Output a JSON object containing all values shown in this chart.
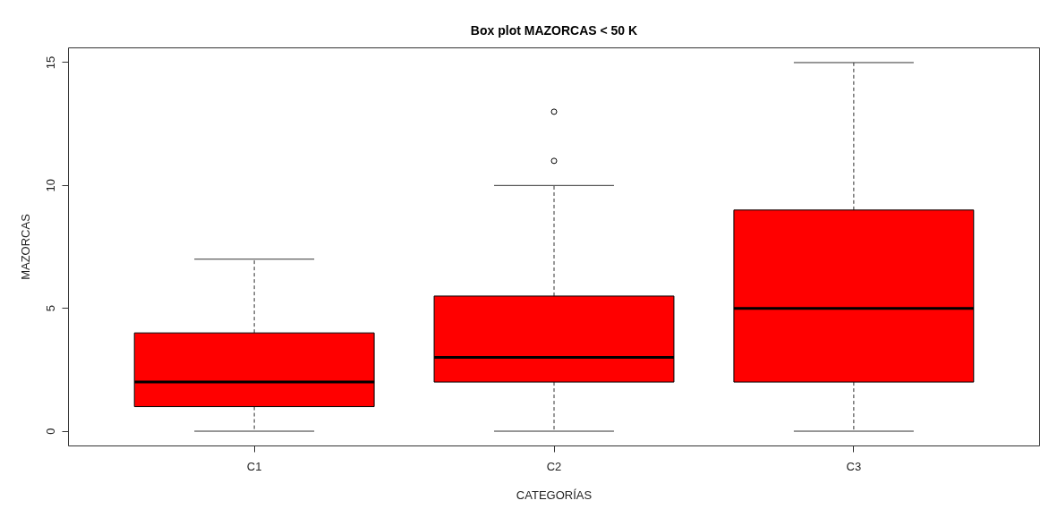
{
  "chart_data": {
    "type": "box",
    "title": "Box plot MAZORCAS < 50 K",
    "xlabel": "CATEGORÍAS",
    "ylabel": "MAZORCAS",
    "categories": [
      "C1",
      "C2",
      "C3"
    ],
    "boxes": [
      {
        "low": 0,
        "q1": 1,
        "median": 2,
        "q3": 4,
        "high": 7
      },
      {
        "low": 0,
        "q1": 2,
        "median": 3,
        "q3": 5.5,
        "high": 10,
        "outliers": [
          11,
          13
        ]
      },
      {
        "low": 0,
        "q1": 2,
        "median": 5,
        "q3": 9,
        "high": 15
      }
    ],
    "color": "#ff0000",
    "ylim": [
      -0.6,
      15.6
    ],
    "yticks": [
      0,
      5,
      10,
      15
    ],
    "grid": false
  }
}
